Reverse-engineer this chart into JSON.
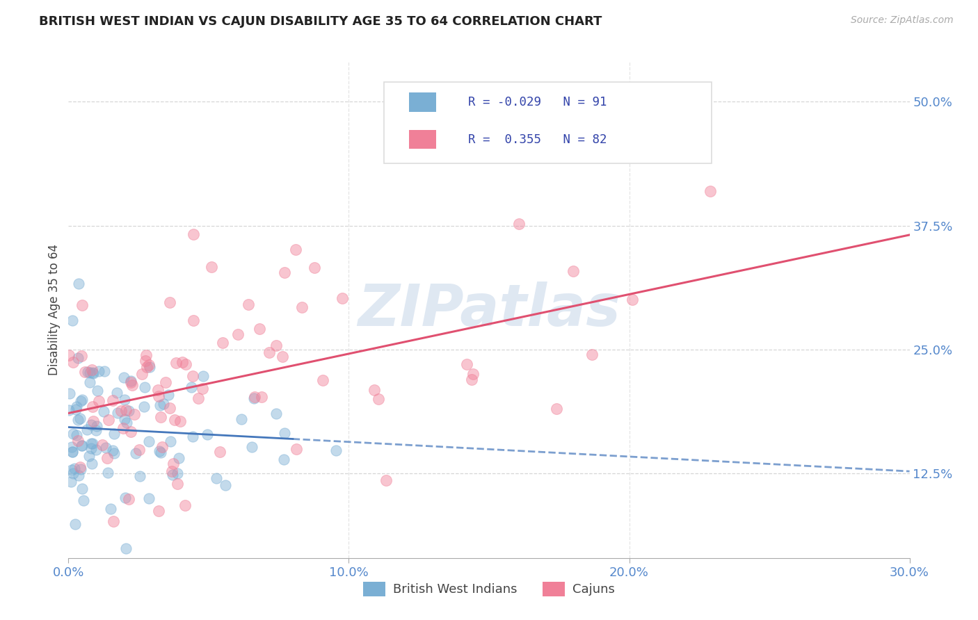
{
  "title": "BRITISH WEST INDIAN VS CAJUN DISABILITY AGE 35 TO 64 CORRELATION CHART",
  "source": "Source: ZipAtlas.com",
  "ylabel": "Disability Age 35 to 64",
  "xlim": [
    0.0,
    0.3
  ],
  "ylim": [
    0.04,
    0.54
  ],
  "xticks": [
    0.0,
    0.1,
    0.2,
    0.3
  ],
  "xtick_labels": [
    "0.0%",
    "10.0%",
    "20.0%",
    "30.0%"
  ],
  "ytick_positions": [
    0.125,
    0.25,
    0.375,
    0.5
  ],
  "ytick_labels": [
    "12.5%",
    "25.0%",
    "37.5%",
    "50.0%"
  ],
  "bwi_color": "#7aafd4",
  "cajun_color": "#f08098",
  "bwi_line_color": "#4477bb",
  "cajun_line_color": "#e05070",
  "R_bwi": -0.029,
  "N_bwi": 91,
  "R_cajun": 0.355,
  "N_cajun": 82,
  "watermark": "ZIPatlas",
  "legend_label_bwi": "British West Indians",
  "legend_label_cajun": "Cajuns",
  "background_color": "#ffffff",
  "grid_color": "#cccccc",
  "title_color": "#222222",
  "axis_label_color": "#444444",
  "tick_label_color": "#5588cc",
  "bwi_intercept": 0.175,
  "bwi_slope": -0.12,
  "cajun_intercept": 0.175,
  "cajun_slope": 0.55
}
